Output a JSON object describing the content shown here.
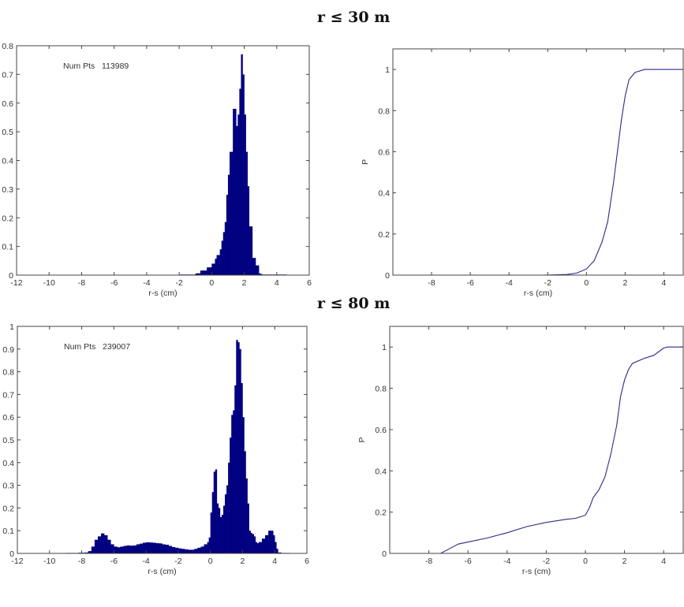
{
  "section_titles": [
    "r ≤ 30 m",
    "r ≤ 80 m"
  ],
  "colors": {
    "bars": "#000080",
    "line": "#2a2a8a",
    "axes": "#444444"
  },
  "chart_data": [
    {
      "type": "bar",
      "panel": "top-left",
      "annotation": "Num Pts   113989",
      "xlabel": "r-s (cm)",
      "ylabel": "",
      "xlim": [
        -12,
        6
      ],
      "ylim": [
        0,
        0.8
      ],
      "xticks": [
        -12,
        -10,
        -8,
        -6,
        -4,
        -2,
        0,
        2,
        4,
        6
      ],
      "yticks": [
        0,
        0.1,
        0.2,
        0.3,
        0.4,
        0.5,
        0.6,
        0.7,
        0.8
      ],
      "bin_start": -2.0,
      "bin_width": 0.1,
      "values": [
        0.002,
        0.002,
        0.002,
        0.002,
        0.002,
        0.002,
        0.002,
        0.002,
        0.002,
        0.002,
        0.006,
        0.006,
        0.006,
        0.016,
        0.016,
        0.016,
        0.016,
        0.027,
        0.027,
        0.027,
        0.04,
        0.04,
        0.057,
        0.07,
        0.07,
        0.09,
        0.12,
        0.15,
        0.185,
        0.28,
        0.35,
        0.43,
        0.43,
        0.58,
        0.58,
        0.52,
        0.56,
        0.65,
        0.77,
        0.7,
        0.56,
        0.43,
        0.31,
        0.17,
        0.17,
        0.06,
        0.06,
        0.034,
        0.034,
        0.006,
        0.004,
        0.002,
        0.002,
        0.002,
        0.002,
        0.002,
        0.002,
        0.002,
        0.002,
        0.002,
        0.002,
        0.002,
        0.002,
        0.002,
        0.002,
        0.002
      ]
    },
    {
      "type": "line",
      "panel": "top-right",
      "xlabel": "r-s (cm)",
      "ylabel": "P",
      "xlim": [
        -10,
        5
      ],
      "ylim": [
        0,
        1.1
      ],
      "xticks": [
        -8,
        -6,
        -4,
        -2,
        0,
        2,
        4
      ],
      "yticks": [
        0,
        0.2,
        0.4,
        0.6,
        0.8,
        1
      ],
      "x": [
        -2.2,
        -1,
        -0.5,
        0,
        0.4,
        0.8,
        1.1,
        1.4,
        1.6,
        1.8,
        2.0,
        2.2,
        2.5,
        3.0,
        5
      ],
      "y": [
        0,
        0.003,
        0.01,
        0.03,
        0.07,
        0.16,
        0.26,
        0.45,
        0.6,
        0.75,
        0.87,
        0.95,
        0.985,
        1.0,
        1.0
      ]
    },
    {
      "type": "bar",
      "panel": "bottom-left",
      "annotation": "Num Pts   239007",
      "xlabel": "r-s (cm)",
      "ylabel": "",
      "xlim": [
        -12,
        6
      ],
      "ylim": [
        0,
        1
      ],
      "xticks": [
        -12,
        -10,
        -8,
        -6,
        -4,
        -2,
        0,
        2,
        4,
        6
      ],
      "yticks": [
        0,
        0.1,
        0.2,
        0.3,
        0.4,
        0.5,
        0.6,
        0.7,
        0.8,
        0.9,
        1
      ],
      "x": [
        -9.0,
        -8.6,
        -8.2,
        -7.8,
        -7.6,
        -7.4,
        -7.2,
        -7.0,
        -6.8,
        -6.6,
        -6.4,
        -6.2,
        -6.0,
        -5.8,
        -5.6,
        -5.4,
        -5.2,
        -5.0,
        -4.8,
        -4.6,
        -4.4,
        -4.2,
        -4.0,
        -3.8,
        -3.6,
        -3.4,
        -3.2,
        -3.0,
        -2.8,
        -2.6,
        -2.4,
        -2.2,
        -2.0,
        -1.8,
        -1.6,
        -1.4,
        -1.2,
        -1.0,
        -0.8,
        -0.6,
        -0.4,
        -0.2,
        -0.1,
        0.0,
        0.1,
        0.2,
        0.3,
        0.4,
        0.5,
        0.6,
        0.7,
        0.8,
        0.9,
        1.0,
        1.1,
        1.2,
        1.3,
        1.4,
        1.5,
        1.6,
        1.7,
        1.8,
        1.9,
        2.0,
        2.1,
        2.2,
        2.3,
        2.4,
        2.5,
        2.6,
        2.7,
        2.8,
        2.9,
        3.0,
        3.2,
        3.4,
        3.6,
        3.8,
        3.9,
        4.0,
        4.1,
        4.2,
        4.4,
        4.6,
        4.8
      ],
      "values": [
        0.002,
        0.002,
        0.003,
        0.004,
        0.01,
        0.03,
        0.06,
        0.075,
        0.088,
        0.08,
        0.06,
        0.04,
        0.03,
        0.027,
        0.03,
        0.033,
        0.035,
        0.034,
        0.035,
        0.04,
        0.043,
        0.047,
        0.049,
        0.048,
        0.047,
        0.045,
        0.044,
        0.04,
        0.038,
        0.033,
        0.028,
        0.025,
        0.022,
        0.02,
        0.018,
        0.016,
        0.016,
        0.02,
        0.025,
        0.03,
        0.04,
        0.05,
        0.07,
        0.18,
        0.27,
        0.36,
        0.37,
        0.22,
        0.2,
        0.16,
        0.17,
        0.21,
        0.26,
        0.3,
        0.4,
        0.51,
        0.61,
        0.63,
        0.74,
        0.94,
        0.93,
        0.9,
        0.75,
        0.6,
        0.45,
        0.33,
        0.22,
        0.1,
        0.09,
        0.085,
        0.075,
        0.05,
        0.045,
        0.05,
        0.065,
        0.08,
        0.1,
        0.1,
        0.08,
        0.05,
        0.02,
        0.004,
        0.002,
        0.002,
        0.002
      ]
    },
    {
      "type": "line",
      "panel": "bottom-right",
      "xlabel": "r-s (cm)",
      "ylabel": "P",
      "xlim": [
        -10,
        5
      ],
      "ylim": [
        0,
        1.1
      ],
      "xticks": [
        -8,
        -6,
        -4,
        -2,
        0,
        2,
        4
      ],
      "yticks": [
        0,
        0.2,
        0.4,
        0.6,
        0.8,
        1
      ],
      "x": [
        -9,
        -7.4,
        -7,
        -6.5,
        -6,
        -5,
        -4,
        -3,
        -2,
        -1,
        -0.5,
        0,
        0.2,
        0.4,
        0.7,
        1.0,
        1.3,
        1.6,
        1.8,
        2.0,
        2.2,
        2.4,
        3,
        3.5,
        4.0,
        4.2,
        5
      ],
      "y": [
        0,
        0,
        0.02,
        0.045,
        0.055,
        0.075,
        0.1,
        0.13,
        0.15,
        0.165,
        0.17,
        0.185,
        0.22,
        0.27,
        0.31,
        0.37,
        0.48,
        0.62,
        0.76,
        0.84,
        0.89,
        0.92,
        0.945,
        0.96,
        0.995,
        1.0,
        1.0
      ]
    }
  ]
}
